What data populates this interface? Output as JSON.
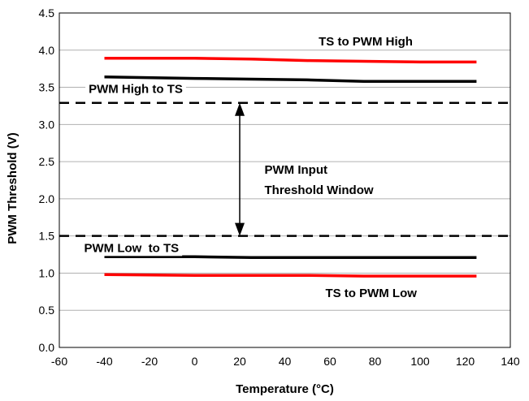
{
  "chart_data": {
    "type": "line",
    "title": "",
    "xlabel": "Temperature (°C)",
    "ylabel": "PWM Threshold (V)",
    "xlim": [
      -60,
      140
    ],
    "ylim": [
      0.0,
      4.5
    ],
    "xticks": [
      "-60",
      "-40",
      "-20",
      "0",
      "20",
      "40",
      "60",
      "80",
      "100",
      "120",
      "140"
    ],
    "yticks": [
      "0.0",
      "0.5",
      "1.0",
      "1.5",
      "2.0",
      "2.5",
      "3.0",
      "3.5",
      "4.0",
      "4.5"
    ],
    "grid": true,
    "legend": "none",
    "series": [
      {
        "name": "TS to PWM High",
        "color": "#ff0000",
        "x": [
          -40,
          0,
          25,
          50,
          75,
          100,
          125
        ],
        "y": [
          3.89,
          3.89,
          3.88,
          3.86,
          3.85,
          3.84,
          3.84
        ]
      },
      {
        "name": "PWM High to TS",
        "color": "#000000",
        "x": [
          -40,
          0,
          25,
          50,
          75,
          100,
          125
        ],
        "y": [
          3.64,
          3.62,
          3.61,
          3.6,
          3.58,
          3.58,
          3.58
        ]
      },
      {
        "name": "PWM Low  to TS",
        "color": "#000000",
        "x": [
          -40,
          0,
          25,
          50,
          75,
          100,
          125
        ],
        "y": [
          1.22,
          1.22,
          1.21,
          1.21,
          1.21,
          1.21,
          1.21
        ]
      },
      {
        "name": "TS to PWM Low",
        "color": "#ff0000",
        "x": [
          -40,
          0,
          25,
          50,
          75,
          100,
          125
        ],
        "y": [
          0.98,
          0.97,
          0.97,
          0.97,
          0.96,
          0.96,
          0.96
        ]
      }
    ],
    "threshold_lines": [
      {
        "y": 3.29,
        "style": "dashed"
      },
      {
        "y": 1.5,
        "style": "dashed"
      }
    ],
    "window_arrow": {
      "x": 20,
      "y_from": 1.5,
      "y_to": 3.29
    },
    "annotations": [
      {
        "id": "ts-to-pwm-high",
        "text": "TS to PWM High",
        "x": 55,
        "y": 4.12
      },
      {
        "id": "pwm-high-to-ts",
        "text": "PWM High to TS",
        "x": -47,
        "y": 3.48
      },
      {
        "id": "window-line1",
        "text": "PWM Input",
        "x": 31,
        "y": 2.39
      },
      {
        "id": "window-line2",
        "text": "Threshold Window",
        "x": 31,
        "y": 2.12
      },
      {
        "id": "pwm-low-to-ts",
        "text": "PWM Low  to TS",
        "x": -49,
        "y": 1.34
      },
      {
        "id": "ts-to-pwm-low",
        "text": "TS to PWM Low",
        "x": 58,
        "y": 0.73
      }
    ]
  }
}
